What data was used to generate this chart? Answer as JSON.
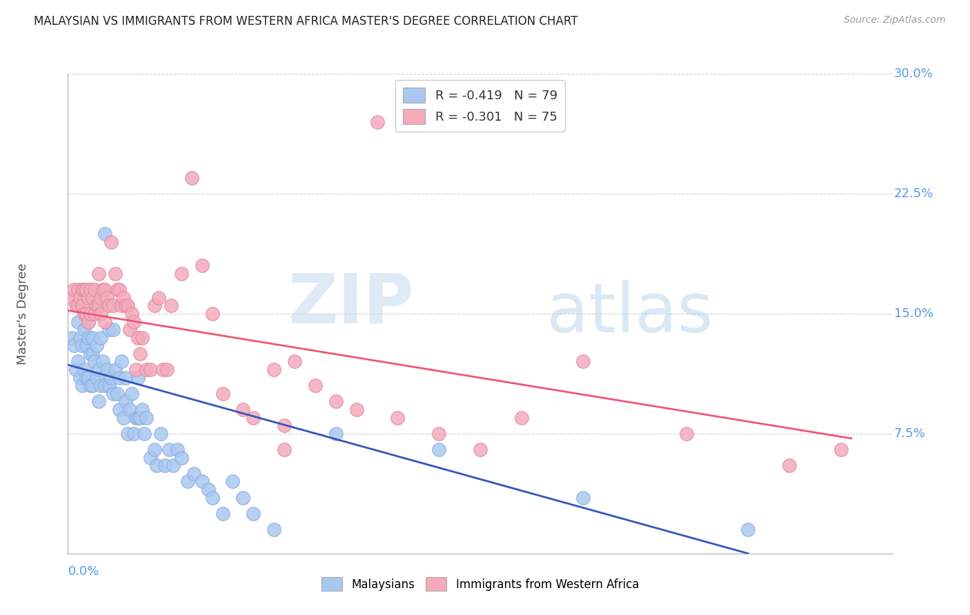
{
  "title": "MALAYSIAN VS IMMIGRANTS FROM WESTERN AFRICA MASTER'S DEGREE CORRELATION CHART",
  "source": "Source: ZipAtlas.com",
  "ylabel": "Master's Degree",
  "xlim": [
    0.0,
    0.4
  ],
  "ylim": [
    0.0,
    0.3
  ],
  "ytick_vals": [
    0.075,
    0.15,
    0.225,
    0.3
  ],
  "ytick_labels": [
    "7.5%",
    "15.0%",
    "22.5%",
    "30.0%"
  ],
  "legend_label1": "R = -0.419   N = 79",
  "legend_label2": "R = -0.301   N = 75",
  "color_blue": "#A8C8F0",
  "color_pink": "#F4AABB",
  "color_line_blue": "#3355BB",
  "color_line_pink": "#EE5577",
  "color_axis_labels": "#5599EE",
  "watermark_zip": "ZIP",
  "watermark_atlas": "atlas",
  "malaysians_x": [
    0.002,
    0.003,
    0.004,
    0.005,
    0.005,
    0.006,
    0.006,
    0.007,
    0.007,
    0.008,
    0.008,
    0.009,
    0.009,
    0.01,
    0.01,
    0.01,
    0.011,
    0.011,
    0.012,
    0.012,
    0.012,
    0.013,
    0.014,
    0.014,
    0.015,
    0.015,
    0.016,
    0.016,
    0.017,
    0.018,
    0.018,
    0.019,
    0.02,
    0.02,
    0.021,
    0.022,
    0.022,
    0.023,
    0.024,
    0.025,
    0.025,
    0.026,
    0.027,
    0.028,
    0.028,
    0.029,
    0.03,
    0.031,
    0.032,
    0.033,
    0.034,
    0.034,
    0.035,
    0.036,
    0.037,
    0.038,
    0.04,
    0.042,
    0.043,
    0.045,
    0.047,
    0.049,
    0.051,
    0.053,
    0.055,
    0.058,
    0.061,
    0.065,
    0.068,
    0.07,
    0.075,
    0.08,
    0.085,
    0.09,
    0.1,
    0.13,
    0.18,
    0.25,
    0.33
  ],
  "malaysians_y": [
    0.135,
    0.13,
    0.115,
    0.145,
    0.12,
    0.135,
    0.11,
    0.13,
    0.105,
    0.14,
    0.115,
    0.13,
    0.11,
    0.145,
    0.135,
    0.11,
    0.125,
    0.105,
    0.135,
    0.125,
    0.105,
    0.12,
    0.13,
    0.11,
    0.115,
    0.095,
    0.135,
    0.105,
    0.12,
    0.2,
    0.105,
    0.115,
    0.14,
    0.105,
    0.11,
    0.1,
    0.14,
    0.115,
    0.1,
    0.11,
    0.09,
    0.12,
    0.085,
    0.11,
    0.095,
    0.075,
    0.09,
    0.1,
    0.075,
    0.085,
    0.11,
    0.085,
    0.085,
    0.09,
    0.075,
    0.085,
    0.06,
    0.065,
    0.055,
    0.075,
    0.055,
    0.065,
    0.055,
    0.065,
    0.06,
    0.045,
    0.05,
    0.045,
    0.04,
    0.035,
    0.025,
    0.045,
    0.035,
    0.025,
    0.015,
    0.075,
    0.065,
    0.035,
    0.015
  ],
  "western_africa_x": [
    0.002,
    0.003,
    0.004,
    0.005,
    0.005,
    0.006,
    0.007,
    0.007,
    0.008,
    0.008,
    0.009,
    0.009,
    0.01,
    0.01,
    0.011,
    0.011,
    0.012,
    0.013,
    0.013,
    0.014,
    0.015,
    0.015,
    0.016,
    0.016,
    0.017,
    0.018,
    0.018,
    0.019,
    0.02,
    0.021,
    0.022,
    0.023,
    0.024,
    0.025,
    0.026,
    0.027,
    0.028,
    0.029,
    0.03,
    0.031,
    0.032,
    0.033,
    0.034,
    0.035,
    0.036,
    0.038,
    0.04,
    0.042,
    0.044,
    0.046,
    0.048,
    0.05,
    0.055,
    0.06,
    0.065,
    0.07,
    0.075,
    0.085,
    0.09,
    0.1,
    0.11,
    0.12,
    0.14,
    0.16,
    0.18,
    0.2,
    0.22,
    0.25,
    0.3,
    0.35,
    0.375,
    0.15,
    0.13,
    0.105,
    0.105
  ],
  "western_africa_y": [
    0.16,
    0.165,
    0.155,
    0.165,
    0.155,
    0.16,
    0.165,
    0.155,
    0.165,
    0.15,
    0.165,
    0.15,
    0.16,
    0.145,
    0.165,
    0.15,
    0.16,
    0.165,
    0.15,
    0.155,
    0.175,
    0.155,
    0.16,
    0.15,
    0.165,
    0.165,
    0.145,
    0.16,
    0.155,
    0.195,
    0.155,
    0.175,
    0.165,
    0.165,
    0.155,
    0.16,
    0.155,
    0.155,
    0.14,
    0.15,
    0.145,
    0.115,
    0.135,
    0.125,
    0.135,
    0.115,
    0.115,
    0.155,
    0.16,
    0.115,
    0.115,
    0.155,
    0.175,
    0.235,
    0.18,
    0.15,
    0.1,
    0.09,
    0.085,
    0.115,
    0.12,
    0.105,
    0.09,
    0.085,
    0.075,
    0.065,
    0.085,
    0.12,
    0.075,
    0.055,
    0.065,
    0.27,
    0.095,
    0.08,
    0.065
  ]
}
